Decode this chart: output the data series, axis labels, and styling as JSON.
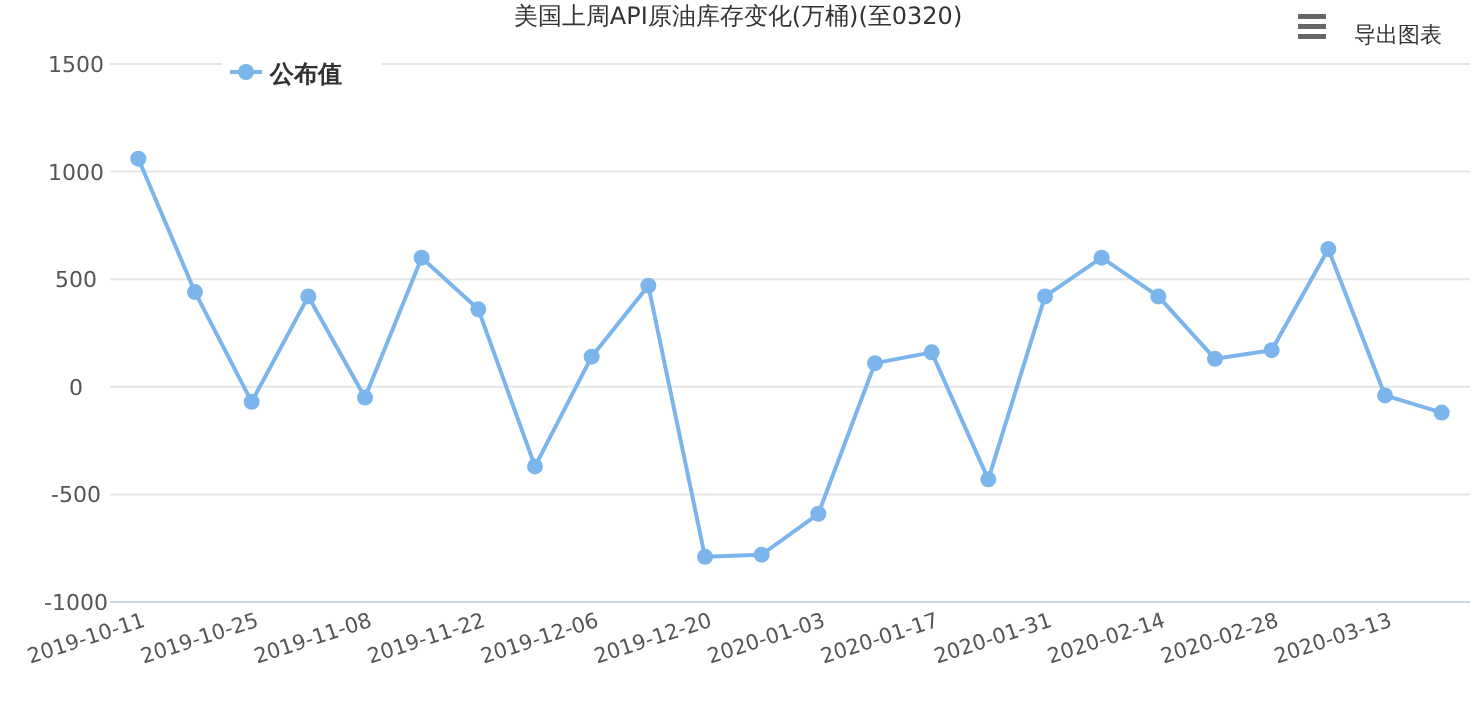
{
  "chart_data": {
    "type": "line",
    "title": "美国上周API原油库存变化(万桶)(至0320)",
    "categories": [
      "2019-10-11",
      null,
      "2019-10-25",
      null,
      "2019-11-08",
      null,
      "2019-11-22",
      null,
      "2019-12-06",
      null,
      "2019-12-20",
      null,
      "2020-01-03",
      null,
      "2020-01-17",
      null,
      "2020-01-31",
      null,
      "2020-02-14",
      null,
      "2020-02-28",
      null,
      "2020-03-13",
      null
    ],
    "series": [
      {
        "name": "公布值",
        "color": "#7cb5ec",
        "values": [
          1060,
          440,
          -70,
          420,
          -50,
          600,
          360,
          -370,
          140,
          470,
          -790,
          -780,
          -590,
          110,
          160,
          -430,
          420,
          600,
          420,
          130,
          170,
          640,
          -40,
          -120
        ]
      }
    ],
    "ylim": [
      -1000,
      1500
    ],
    "yticks": [
      -1000,
      -500,
      0,
      500,
      1000,
      1500
    ],
    "grid": "y",
    "legend": "top left",
    "marker": "circle",
    "line_style": "solid",
    "annotations": [
      "导出图表"
    ]
  }
}
